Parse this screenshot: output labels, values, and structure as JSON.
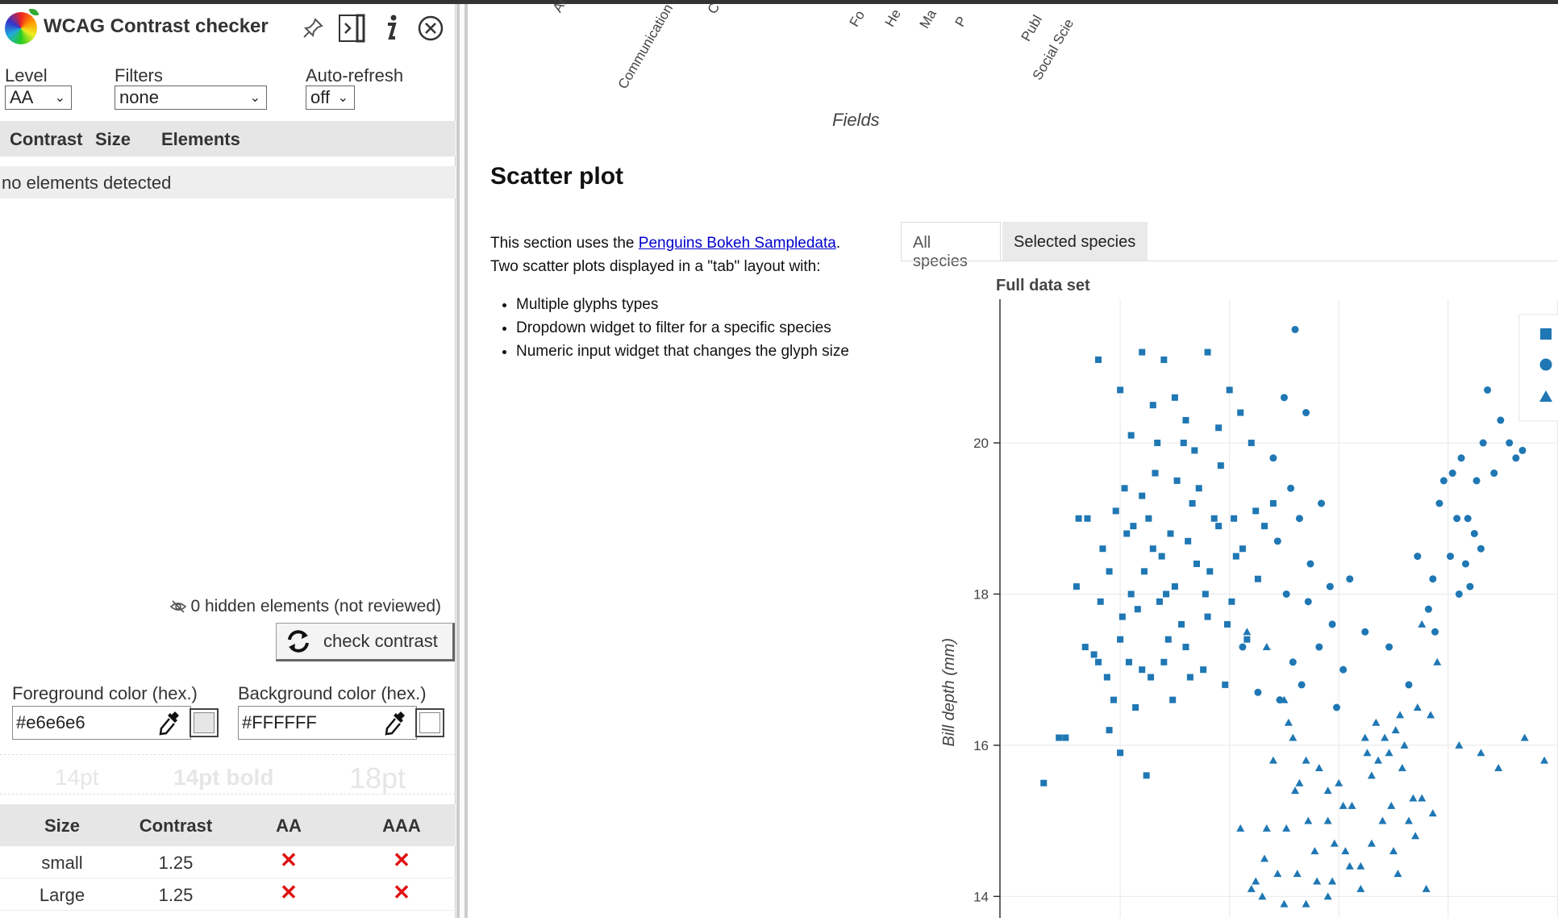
{
  "panel": {
    "title": "WCAG Contrast checker",
    "level_label": "Level",
    "level_value": "AA",
    "filters_label": "Filters",
    "filters_value": "none",
    "autorefresh_label": "Auto-refresh",
    "autorefresh_value": "off",
    "columns": [
      "Contrast",
      "Size",
      "Elements"
    ],
    "empty_message": "no elements detected",
    "hidden_elements": "0 hidden elements (not reviewed)",
    "check_button": "check contrast",
    "fg_label": "Foreground color (hex.)",
    "fg_value": "#e6e6e6",
    "bg_label": "Background color (hex.)",
    "bg_value": "#FFFFFF",
    "samples": [
      "14pt",
      "14pt bold",
      "18pt"
    ],
    "results_headers": [
      "Size",
      "Contrast",
      "AA",
      "AAA"
    ],
    "results": [
      {
        "size": "small",
        "contrast": "1.25",
        "aa": "✕",
        "aaa": "✕"
      },
      {
        "size": "Large",
        "contrast": "1.25",
        "aa": "✕",
        "aaa": "✕"
      }
    ],
    "colors": {
      "fail": "#e01010",
      "sample_fg": "#e6e6e6"
    }
  },
  "doc": {
    "categories": [
      "Art &",
      "Communication",
      "C",
      "Fo",
      "He",
      "Ma",
      "P",
      "Publ",
      "Social Scie"
    ],
    "fields_label": "Fields",
    "section_title": "Scatter plot",
    "intro_before_link": "This section uses the ",
    "intro_link": "Penguins Bokeh Sampledata",
    "intro_after_link": ".",
    "intro_line2": "Two scatter plots displayed in a \"tab\" layout with:",
    "bullets": [
      "Multiple glyphs types",
      "Dropdown widget to filter for a specific species",
      "Numeric input widget that changes the glyph size"
    ],
    "tabs": [
      "All species",
      "Selected species"
    ]
  },
  "chart_data": {
    "type": "scatter",
    "title": "Full data set",
    "ylabel": "Bill depth (mm)",
    "xlabel": "",
    "ylim": [
      13.8,
      21.9
    ],
    "yticks": [
      14,
      16,
      18,
      20
    ],
    "grid": true,
    "legend_position": "top-right",
    "color": "#1f77b4",
    "series": [
      {
        "marker": "square",
        "points": [
          [
            34,
            21.1
          ],
          [
            35,
            20.7
          ],
          [
            36,
            21.2
          ],
          [
            37,
            21.1
          ],
          [
            38,
            20.3
          ],
          [
            39,
            21.2
          ],
          [
            40,
            20.7
          ],
          [
            36.5,
            20.5
          ],
          [
            37.5,
            20.6
          ],
          [
            35.5,
            20.1
          ],
          [
            41,
            20.0
          ],
          [
            39.5,
            20.2
          ],
          [
            40.5,
            20.4
          ],
          [
            33.5,
            19.0
          ],
          [
            33,
            18.1
          ],
          [
            34,
            17.1
          ],
          [
            32.5,
            16.1
          ],
          [
            34.5,
            16.2
          ],
          [
            35,
            15.9
          ],
          [
            33.8,
            17.2
          ],
          [
            34.2,
            18.6
          ],
          [
            34.8,
            19.1
          ],
          [
            35.2,
            19.4
          ],
          [
            36,
            19.3
          ],
          [
            34.5,
            18.3
          ],
          [
            35.5,
            18.0
          ],
          [
            36.5,
            18.6
          ],
          [
            37.5,
            18.1
          ],
          [
            38.5,
            18.4
          ],
          [
            39.5,
            18.9
          ],
          [
            35,
            17.4
          ],
          [
            36,
            17.0
          ],
          [
            37,
            17.1
          ],
          [
            38,
            17.3
          ],
          [
            39,
            17.7
          ],
          [
            34.7,
            16.6
          ],
          [
            35.7,
            16.5
          ],
          [
            36.2,
            15.6
          ],
          [
            35.3,
            18.8
          ],
          [
            36.3,
            19.0
          ],
          [
            37.3,
            18.8
          ],
          [
            38.3,
            19.2
          ],
          [
            39.3,
            19.0
          ],
          [
            40.3,
            18.5
          ],
          [
            41.3,
            18.2
          ],
          [
            35.8,
            17.8
          ],
          [
            36.8,
            17.9
          ],
          [
            37.8,
            17.6
          ],
          [
            38.8,
            17.0
          ],
          [
            39.8,
            16.8
          ],
          [
            40.8,
            17.4
          ],
          [
            34.1,
            17.9
          ],
          [
            35.1,
            17.7
          ],
          [
            36.1,
            18.3
          ],
          [
            37.1,
            18.0
          ],
          [
            38.1,
            18.7
          ],
          [
            39.1,
            18.3
          ],
          [
            40.1,
            17.9
          ],
          [
            36.6,
            19.6
          ],
          [
            37.6,
            19.5
          ],
          [
            38.6,
            19.4
          ],
          [
            39.6,
            19.7
          ],
          [
            37.9,
            20.0
          ],
          [
            36.7,
            20.0
          ],
          [
            31.5,
            15.5
          ],
          [
            32.2,
            16.1
          ],
          [
            33.1,
            19.0
          ],
          [
            37.2,
            17.4
          ],
          [
            38.2,
            16.9
          ],
          [
            35.6,
            18.9
          ],
          [
            36.9,
            18.5
          ],
          [
            40.6,
            18.6
          ],
          [
            41.6,
            18.9
          ],
          [
            38.9,
            18.0
          ],
          [
            39.9,
            17.6
          ],
          [
            37.4,
            16.6
          ],
          [
            36.4,
            16.9
          ],
          [
            35.4,
            17.1
          ],
          [
            34.4,
            16.9
          ],
          [
            33.4,
            17.3
          ],
          [
            40.2,
            19.0
          ],
          [
            41.2,
            19.1
          ],
          [
            42,
            19.2
          ],
          [
            38.4,
            19.9
          ]
        ]
      },
      {
        "marker": "circle",
        "points": [
          [
            43,
            21.5
          ],
          [
            42.5,
            20.6
          ],
          [
            43.5,
            20.4
          ],
          [
            42.8,
            19.4
          ],
          [
            43.2,
            19.0
          ],
          [
            44.2,
            19.2
          ],
          [
            42.2,
            18.7
          ],
          [
            43.7,
            18.4
          ],
          [
            44.6,
            18.1
          ],
          [
            45.5,
            18.2
          ],
          [
            42.6,
            18.0
          ],
          [
            43.6,
            17.9
          ],
          [
            44.1,
            17.3
          ],
          [
            42.9,
            17.1
          ],
          [
            43.3,
            16.8
          ],
          [
            45.2,
            17.0
          ],
          [
            44.9,
            16.5
          ],
          [
            42.3,
            16.6
          ],
          [
            41.3,
            16.7
          ],
          [
            40.6,
            17.3
          ],
          [
            44.7,
            17.6
          ],
          [
            46.2,
            17.5
          ],
          [
            47.3,
            17.3
          ],
          [
            48.2,
            16.8
          ],
          [
            49.1,
            17.8
          ],
          [
            48.6,
            18.5
          ],
          [
            49.3,
            18.2
          ],
          [
            50.1,
            18.5
          ],
          [
            50.5,
            18.0
          ],
          [
            49.6,
            19.2
          ],
          [
            50.2,
            19.6
          ],
          [
            51.3,
            19.5
          ],
          [
            50.9,
            19.0
          ],
          [
            51.2,
            18.8
          ],
          [
            49.8,
            19.5
          ],
          [
            50.6,
            19.8
          ],
          [
            51.6,
            20.0
          ],
          [
            52.1,
            19.6
          ],
          [
            52.8,
            20.0
          ],
          [
            53.4,
            19.9
          ],
          [
            51.8,
            20.7
          ],
          [
            52.4,
            20.3
          ],
          [
            54.5,
            20.8
          ],
          [
            55.1,
            19.8
          ],
          [
            53.1,
            19.8
          ],
          [
            50.4,
            19.0
          ],
          [
            51.0,
            18.1
          ],
          [
            49.4,
            17.5
          ],
          [
            51.5,
            18.6
          ],
          [
            50.8,
            18.4
          ],
          [
            42.0,
            19.8
          ]
        ]
      },
      {
        "marker": "triangle",
        "points": [
          [
            40.8,
            17.5
          ],
          [
            41.7,
            17.3
          ],
          [
            42.7,
            16.3
          ],
          [
            42.5,
            16.6
          ],
          [
            42.9,
            16.1
          ],
          [
            43.5,
            15.8
          ],
          [
            44.1,
            15.7
          ],
          [
            43.2,
            15.5
          ],
          [
            44.5,
            15.4
          ],
          [
            45.2,
            15.2
          ],
          [
            46.2,
            16.1
          ],
          [
            46.7,
            16.3
          ],
          [
            47.1,
            16.1
          ],
          [
            47.3,
            15.9
          ],
          [
            47.6,
            16.2
          ],
          [
            46.5,
            15.6
          ],
          [
            46.8,
            15.8
          ],
          [
            47.9,
            15.7
          ],
          [
            48.4,
            15.3
          ],
          [
            47.0,
            15.0
          ],
          [
            47.4,
            15.2
          ],
          [
            48.2,
            15.0
          ],
          [
            48.8,
            15.3
          ],
          [
            49.3,
            15.1
          ],
          [
            45.6,
            15.2
          ],
          [
            44.5,
            15.0
          ],
          [
            43.6,
            15.0
          ],
          [
            42.6,
            14.9
          ],
          [
            43.9,
            14.6
          ],
          [
            44.8,
            14.7
          ],
          [
            45.3,
            14.6
          ],
          [
            46.0,
            14.4
          ],
          [
            41.7,
            14.9
          ],
          [
            41.6,
            14.5
          ],
          [
            42.2,
            14.3
          ],
          [
            43.1,
            14.3
          ],
          [
            44.0,
            14.2
          ],
          [
            44.7,
            14.2
          ],
          [
            45.5,
            14.4
          ],
          [
            46.5,
            14.7
          ],
          [
            41.0,
            14.1
          ],
          [
            41.5,
            14.0
          ],
          [
            42.5,
            13.9
          ],
          [
            43.5,
            13.9
          ],
          [
            44.5,
            14.0
          ],
          [
            46.0,
            14.1
          ],
          [
            47.7,
            14.3
          ],
          [
            49.0,
            14.1
          ],
          [
            40.5,
            14.9
          ],
          [
            41.2,
            14.2
          ],
          [
            50.5,
            16.0
          ],
          [
            51.5,
            15.9
          ],
          [
            52.3,
            15.7
          ],
          [
            53.5,
            16.1
          ],
          [
            54.4,
            15.8
          ],
          [
            55.3,
            17.0
          ],
          [
            48.8,
            17.6
          ],
          [
            49.5,
            17.1
          ],
          [
            48.6,
            16.5
          ],
          [
            49.2,
            16.4
          ],
          [
            48.0,
            16.0
          ],
          [
            47.8,
            16.4
          ],
          [
            46.3,
            15.9
          ],
          [
            45.0,
            15.5
          ],
          [
            42.0,
            15.8
          ],
          [
            47.5,
            14.6
          ],
          [
            48.5,
            14.8
          ],
          [
            43.0,
            15.4
          ]
        ]
      }
    ]
  }
}
